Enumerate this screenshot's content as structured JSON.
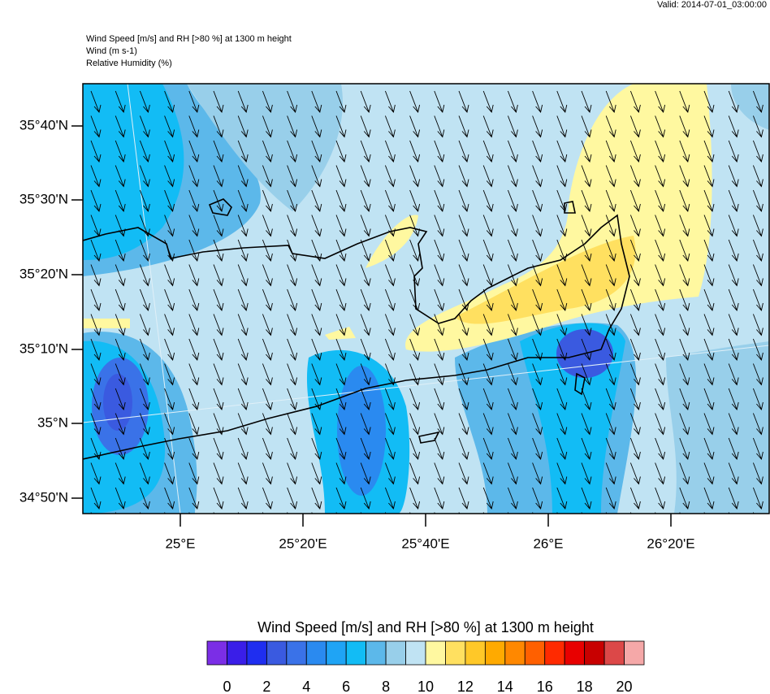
{
  "header": {
    "valid": "Valid: 2014-07-01_03:00:00",
    "lines": [
      "Wind Speed [m/s] and RH [>80 %] at 1300 m height",
      "Wind   (m s-1)",
      "Relative Humidity   (%)"
    ]
  },
  "map": {
    "lat_labels": [
      "35°40'N",
      "35°30'N",
      "35°20'N",
      "35°10'N",
      "35°N",
      "34°50'N"
    ],
    "lon_labels": [
      "25°E",
      "25°20'E",
      "25°40'E",
      "26°E",
      "26°20'E"
    ]
  },
  "colorbar": {
    "title": "Wind Speed [m/s] and RH [>80 %] at 1300 m height",
    "colors": [
      "#7b2ee6",
      "#3a1ee8",
      "#1f2ef0",
      "#3a5ae0",
      "#3a72e8",
      "#2a8af0",
      "#1fa4f5",
      "#12bcf5",
      "#5cb8ea",
      "#98cfea",
      "#c0e3f3",
      "#fff8a0",
      "#ffe060",
      "#ffc828",
      "#ffaa00",
      "#ff8800",
      "#ff6000",
      "#ff2a00",
      "#e80000",
      "#c80000",
      "#dc4848",
      "#f5a8a8"
    ],
    "ticks": [
      0,
      2,
      4,
      6,
      8,
      10,
      12,
      14,
      16,
      18,
      20
    ]
  }
}
